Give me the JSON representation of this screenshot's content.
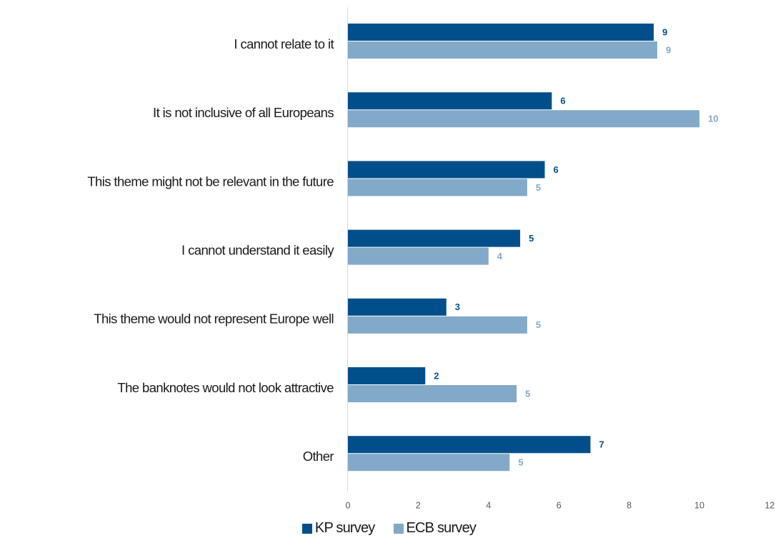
{
  "chart_data": {
    "type": "bar",
    "orientation": "horizontal",
    "categories": [
      "I cannot relate to it",
      "It is not inclusive of all Europeans",
      "This theme might not be relevant in the future",
      "I cannot understand it easily",
      "This theme would not represent Europe well",
      "The banknotes would not look attractive",
      "Other"
    ],
    "series": [
      {
        "name": "KP survey",
        "color": "#004f8b",
        "values": [
          8.7,
          5.8,
          5.6,
          4.9,
          2.8,
          2.2,
          6.9
        ],
        "labels": [
          "9",
          "6",
          "6",
          "5",
          "3",
          "2",
          "7"
        ]
      },
      {
        "name": "ECB survey",
        "color": "#82a9c8",
        "values": [
          8.8,
          10.0,
          5.1,
          4.0,
          5.1,
          4.8,
          4.6
        ],
        "labels": [
          "9",
          "10",
          "5",
          "4",
          "5",
          "5",
          "5"
        ]
      }
    ],
    "xlim": [
      0,
      12
    ],
    "xticks": [
      "0",
      "2",
      "4",
      "6",
      "8",
      "10",
      "12"
    ],
    "grid": false,
    "legend_position": "bottom"
  }
}
